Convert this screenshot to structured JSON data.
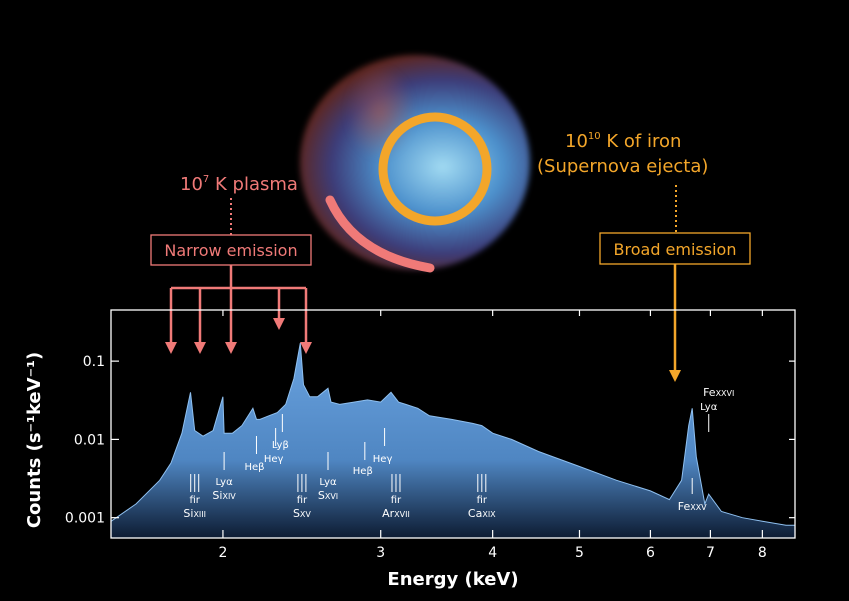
{
  "annotations": {
    "plasma_base": "10",
    "plasma_exp": "7",
    "plasma_rest": " K plasma",
    "iron_base": "10",
    "iron_exp": "10",
    "iron_rest": " K of iron",
    "iron_sub": "(Supernova ejecta)",
    "narrow_box": "Narrow emission",
    "broad_box": "Broad emission"
  },
  "colors": {
    "background": "#000000",
    "narrow_accent": "#f07a78",
    "broad_accent": "#f3a62a",
    "spectrum_fill": "#5f97d4"
  },
  "chart_data": {
    "type": "area",
    "title": "",
    "xlabel": "Energy (keV)",
    "ylabel": "Counts (s⁻¹keV⁻¹)",
    "x_scale": "log",
    "y_scale": "log",
    "xlim": [
      1.5,
      8.7
    ],
    "ylim": [
      0.00055,
      0.45
    ],
    "x_ticks": [
      {
        "v": 2,
        "label": "2"
      },
      {
        "v": 3,
        "label": "3"
      },
      {
        "v": 4,
        "label": "4"
      },
      {
        "v": 5,
        "label": "5"
      },
      {
        "v": 6,
        "label": "6"
      },
      {
        "v": 7,
        "label": "7"
      },
      {
        "v": 8,
        "label": "8"
      }
    ],
    "y_ticks": [
      {
        "v": 0.001,
        "label": "0.001"
      },
      {
        "v": 0.01,
        "label": "0.01"
      },
      {
        "v": 0.1,
        "label": "0.1"
      }
    ],
    "series": [
      {
        "x": [
          1.5,
          1.6,
          1.7,
          1.75,
          1.8,
          1.84,
          1.86,
          1.9,
          1.95,
          2.0,
          2.006,
          2.05,
          2.1,
          2.16,
          2.18,
          2.2,
          2.25,
          2.3,
          2.35,
          2.4,
          2.44,
          2.46,
          2.5,
          2.55,
          2.62,
          2.64,
          2.7,
          2.8,
          2.9,
          3.0,
          3.08,
          3.14,
          3.2,
          3.3,
          3.4,
          3.6,
          3.8,
          3.89,
          4.0,
          4.2,
          4.5,
          5.0,
          5.5,
          6.0,
          6.3,
          6.5,
          6.62,
          6.68,
          6.75,
          6.9,
          6.97,
          7.2,
          7.6,
          8.0,
          8.5,
          8.7
        ],
        "y": [
          0.0009,
          0.0015,
          0.003,
          0.005,
          0.012,
          0.04,
          0.013,
          0.011,
          0.013,
          0.035,
          0.012,
          0.012,
          0.015,
          0.025,
          0.018,
          0.018,
          0.02,
          0.022,
          0.028,
          0.06,
          0.17,
          0.05,
          0.035,
          0.035,
          0.045,
          0.03,
          0.028,
          0.03,
          0.032,
          0.03,
          0.04,
          0.03,
          0.028,
          0.025,
          0.02,
          0.018,
          0.016,
          0.015,
          0.012,
          0.01,
          0.007,
          0.0045,
          0.003,
          0.0022,
          0.0017,
          0.003,
          0.015,
          0.025,
          0.006,
          0.0015,
          0.002,
          0.0012,
          0.001,
          0.0009,
          0.0008,
          0.0008
        ]
      }
    ],
    "line_labels": [
      {
        "id": "si13",
        "lines": [
          "f",
          "i",
          "r"
        ],
        "elem": "Si",
        "ion": "XIII",
        "x": 1.86
      },
      {
        "id": "si14",
        "top": "Lyα",
        "elem": "Si",
        "ion": "XIV",
        "x": 2.006
      },
      {
        "id": "s15",
        "lines": [
          "f",
          "i",
          "r"
        ],
        "elem": "S",
        "ion": "XV",
        "x": 2.45
      },
      {
        "id": "s16",
        "top": "Lyα",
        "elem": "S",
        "ion": "XVI",
        "x": 2.62
      },
      {
        "id": "ar17",
        "lines": [
          "f",
          "i",
          "r"
        ],
        "elem": "Ar",
        "ion": "XVII",
        "x": 3.12
      },
      {
        "id": "ca19",
        "lines": [
          "f",
          "i",
          "r"
        ],
        "elem": "Ca",
        "ion": "XIX",
        "x": 3.89
      },
      {
        "id": "fe25",
        "elem": "Fe",
        "ion": "XXV",
        "x": 6.68
      },
      {
        "id": "fe26",
        "top": "Lyα",
        "elem": "Fe",
        "ion": "XXVI",
        "x": 6.97
      }
    ],
    "he_labels": [
      {
        "text": "Heβ",
        "x": 2.18
      },
      {
        "text": "Heγ",
        "x": 2.29
      },
      {
        "text": "Lyβ",
        "x": 2.33
      },
      {
        "text": "Heβ",
        "x": 2.88
      },
      {
        "text": "Heγ",
        "x": 3.03
      }
    ]
  }
}
